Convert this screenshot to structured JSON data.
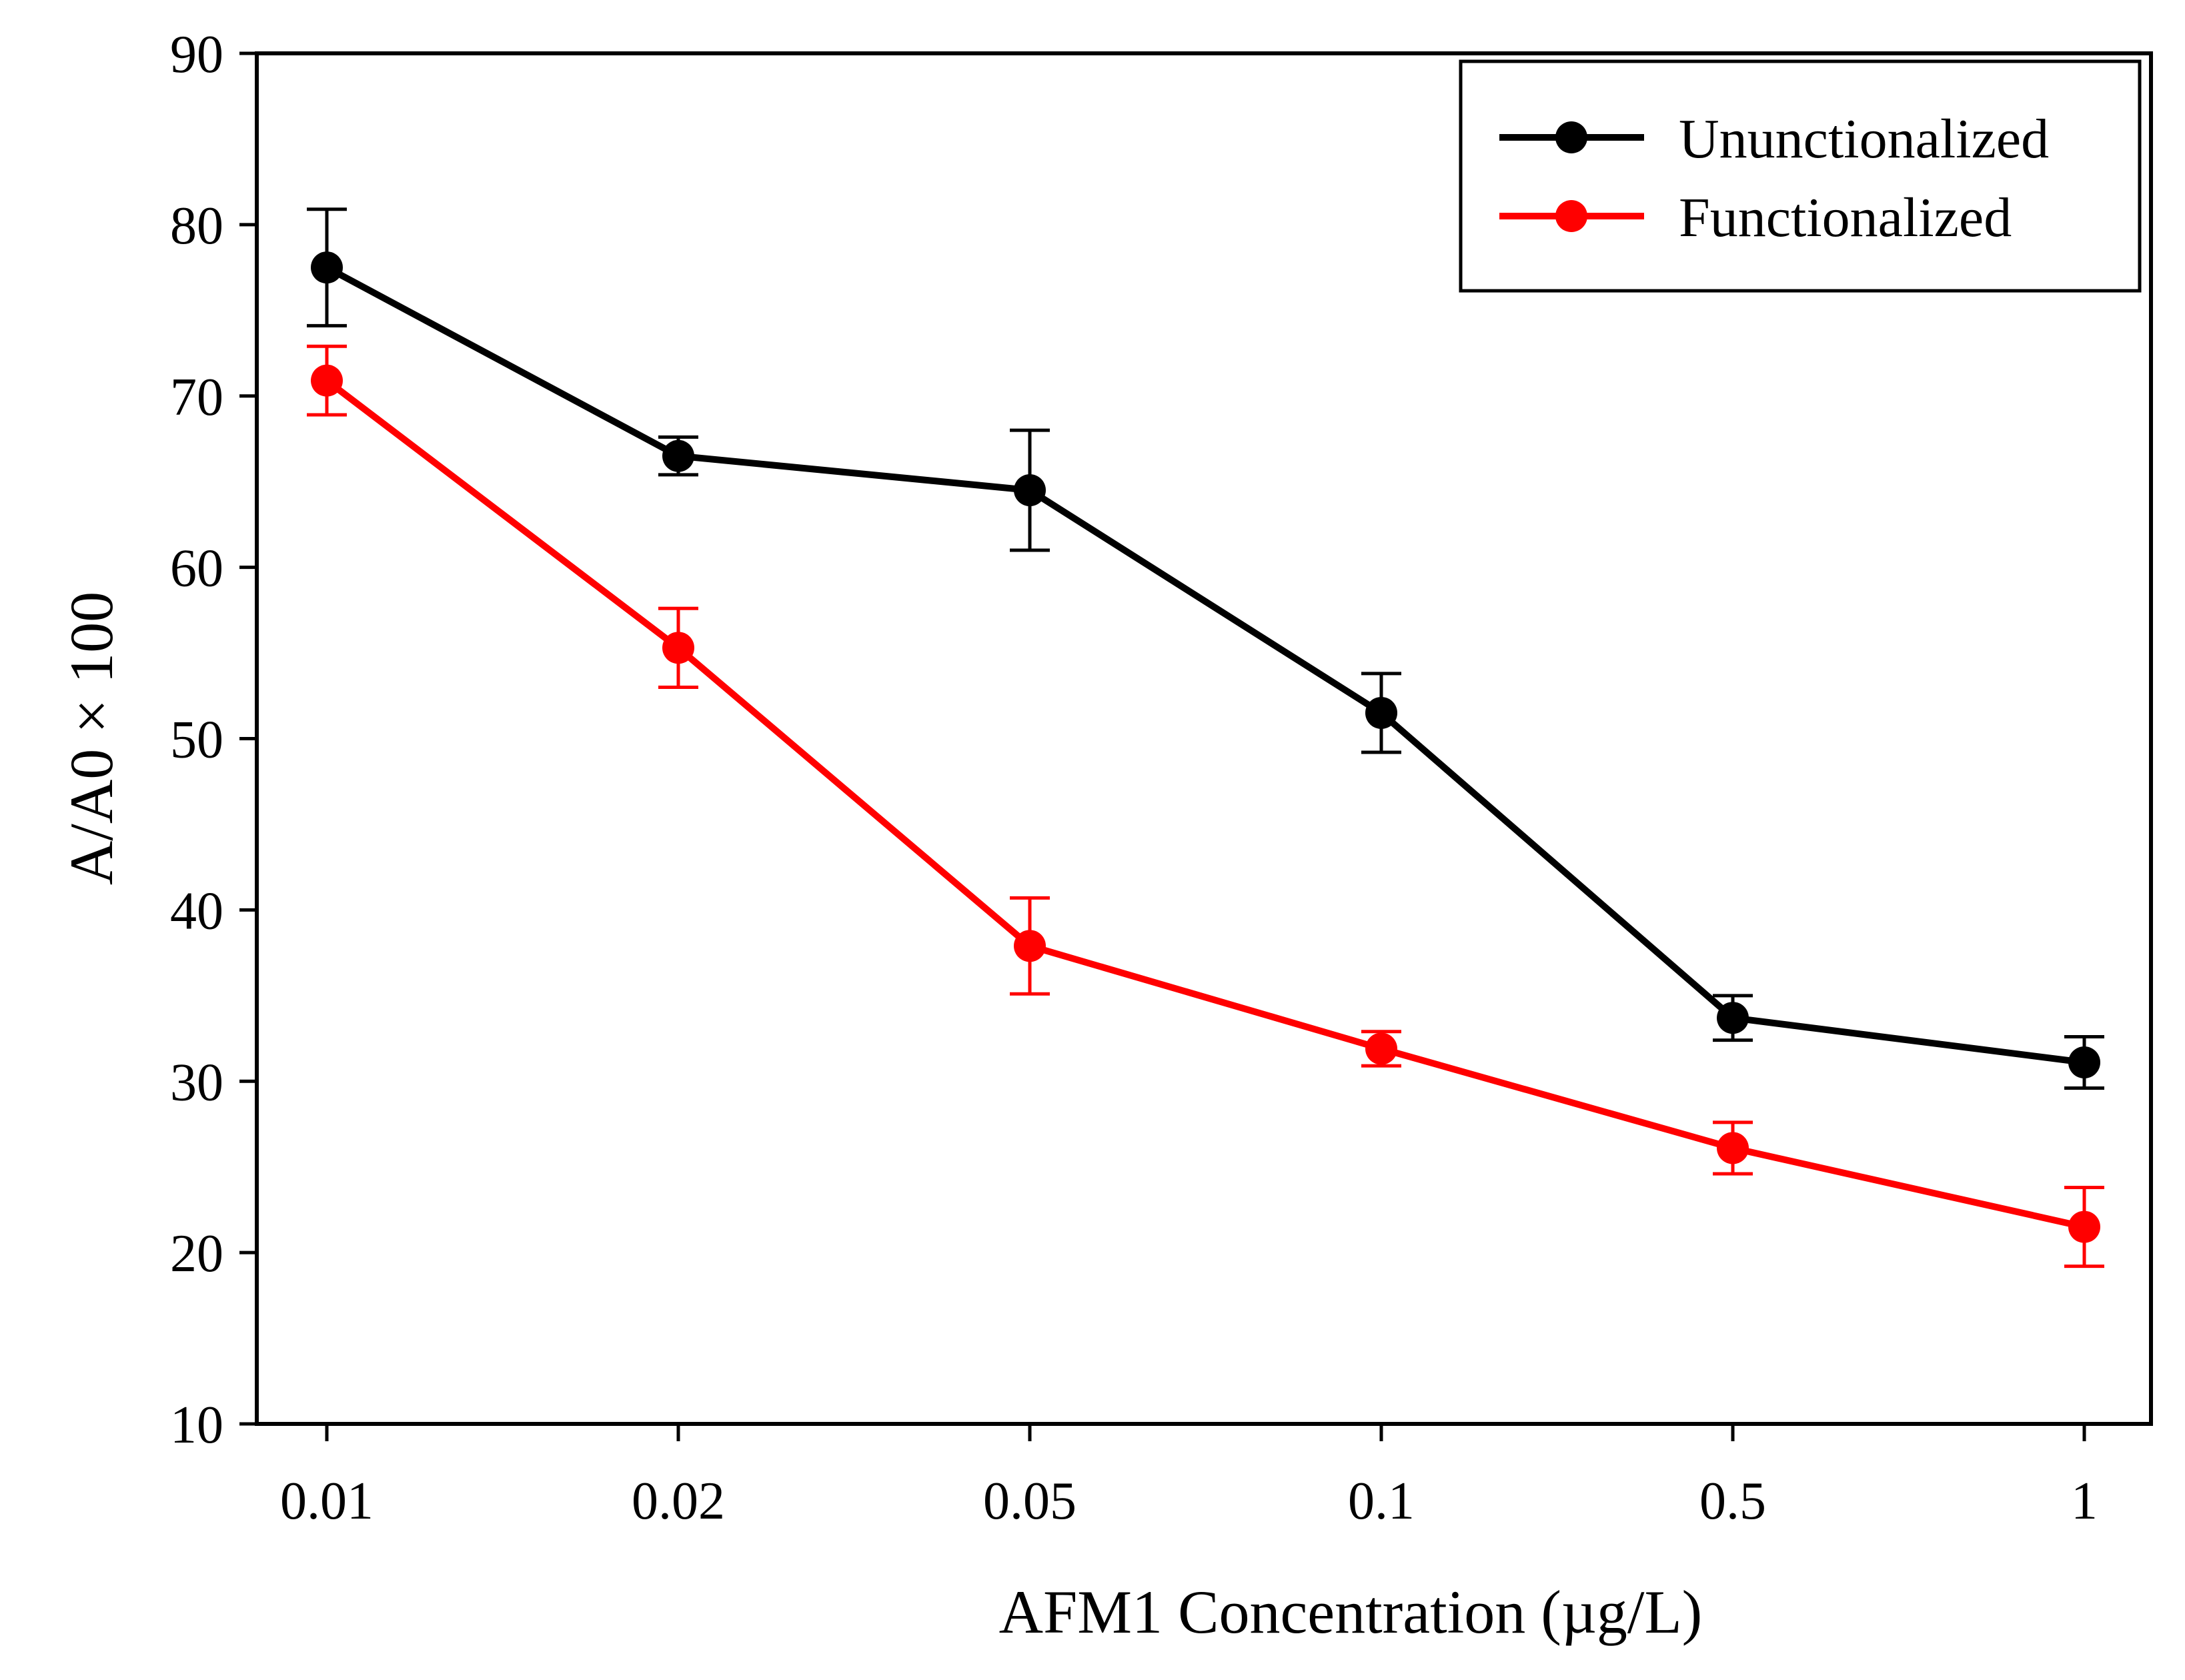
{
  "chart_data": {
    "type": "line",
    "title": "",
    "xlabel": "AFM1 Concentration (µg/L)",
    "ylabel": "A/A0  × 100",
    "categories": [
      "0.01",
      "0.02",
      "0.05",
      "0.1",
      "0.5",
      "1"
    ],
    "ylim": [
      10,
      90
    ],
    "yticks": [
      10,
      20,
      30,
      40,
      50,
      60,
      70,
      80,
      90
    ],
    "grid": false,
    "legend_position": "top-right",
    "series": [
      {
        "name": "Ununctionalized",
        "color": "#000000",
        "values": [
          77.5,
          66.5,
          64.5,
          51.5,
          33.7,
          31.1
        ],
        "errors": [
          3.4,
          1.1,
          3.5,
          2.3,
          1.3,
          1.5
        ]
      },
      {
        "name": "Functionalized",
        "color": "#ff0000",
        "values": [
          70.9,
          55.3,
          37.9,
          31.9,
          26.1,
          21.5
        ],
        "errors": [
          2.0,
          2.3,
          2.8,
          1.0,
          1.5,
          2.3
        ]
      }
    ]
  }
}
